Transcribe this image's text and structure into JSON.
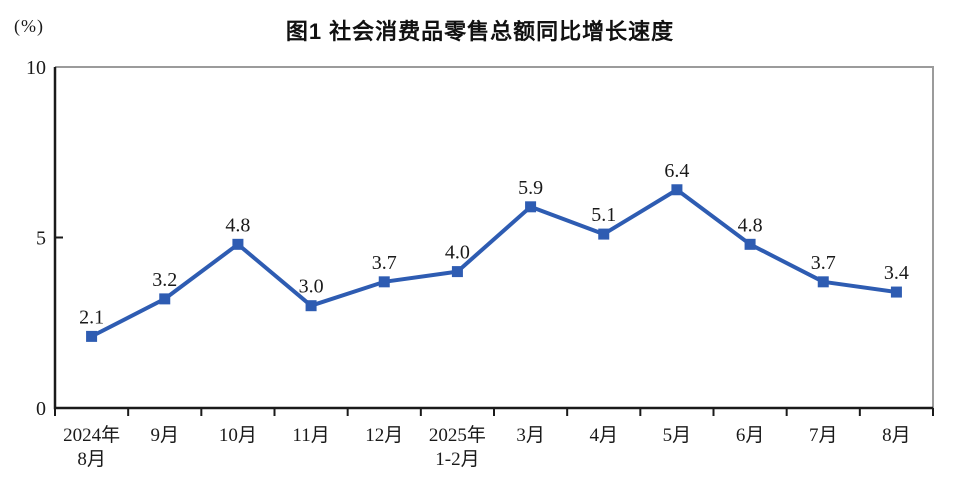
{
  "chart_data": {
    "type": "line",
    "title": "图1 社会消费品零售总额同比增长速度",
    "unit": "(%)",
    "categories": [
      "2024年\n8月",
      "9月",
      "10月",
      "11月",
      "12月",
      "2025年\n1-2月",
      "3月",
      "4月",
      "5月",
      "6月",
      "7月",
      "8月"
    ],
    "values": [
      2.1,
      3.2,
      4.8,
      3.0,
      3.7,
      4.0,
      5.9,
      5.1,
      6.4,
      4.8,
      3.7,
      3.4
    ],
    "value_labels": [
      "2.1",
      "3.2",
      "4.8",
      "3.0",
      "3.7",
      "4.0",
      "5.9",
      "5.1",
      "6.4",
      "4.8",
      "3.7",
      "3.4"
    ],
    "ylim": [
      0,
      10
    ],
    "yticks": [
      0,
      5,
      10
    ],
    "grid": false,
    "legend": false,
    "marker": "square",
    "colors": {
      "line": "#2e5cb2",
      "axis": "#1a1a1a",
      "frame": "#9b9b9b",
      "text": "#1a1a1a"
    }
  }
}
